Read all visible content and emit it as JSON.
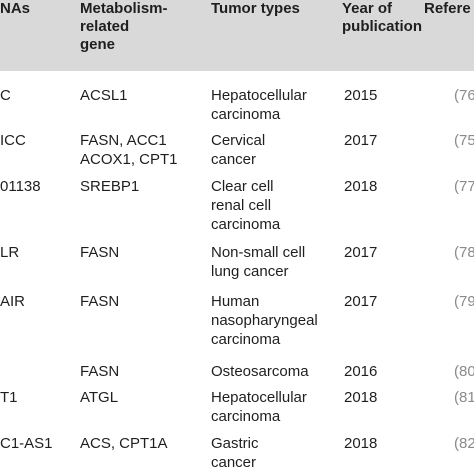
{
  "table": {
    "headers": {
      "lncrnas": "NAs",
      "gene": "Metabolism-\nrelated\ngene",
      "tumor": "Tumor types",
      "year": "Year of\npublication",
      "ref": "Refere"
    },
    "rows": [
      {
        "lncrna": "C",
        "gene": "ACSL1",
        "tumor": "Hepatocellular\ncarcinoma",
        "year": "2015",
        "ref": "(76"
      },
      {
        "lncrna": "ICC",
        "gene": "FASN, ACC1\nACOX1, CPT1",
        "tumor": "Cervical\ncancer",
        "year": "2017",
        "ref": "(75"
      },
      {
        "lncrna": "01138",
        "gene": "SREBP1",
        "tumor": "Clear cell\nrenal cell\ncarcinoma",
        "year": "2018",
        "ref": "(77"
      },
      {
        "lncrna": "LR",
        "gene": "FASN",
        "tumor": "Non-small cell\nlung cancer",
        "year": "2017",
        "ref": "(78"
      },
      {
        "lncrna": "AIR",
        "gene": "FASN",
        "tumor": "Human\nnasopharyngeal\ncarcinoma",
        "year": "2017",
        "ref": "(79"
      },
      {
        "lncrna": "",
        "gene": "FASN",
        "tumor": "Osteosarcoma",
        "year": "2016",
        "ref": "(80"
      },
      {
        "lncrna": "T1",
        "gene": "ATGL",
        "tumor": "Hepatocellular\ncarcinoma",
        "year": "2018",
        "ref": "(81"
      },
      {
        "lncrna": "C1-AS1",
        "gene": "ACS, CPT1A",
        "tumor": "Gastric\ncancer",
        "year": "2018",
        "ref": "(82"
      }
    ]
  }
}
